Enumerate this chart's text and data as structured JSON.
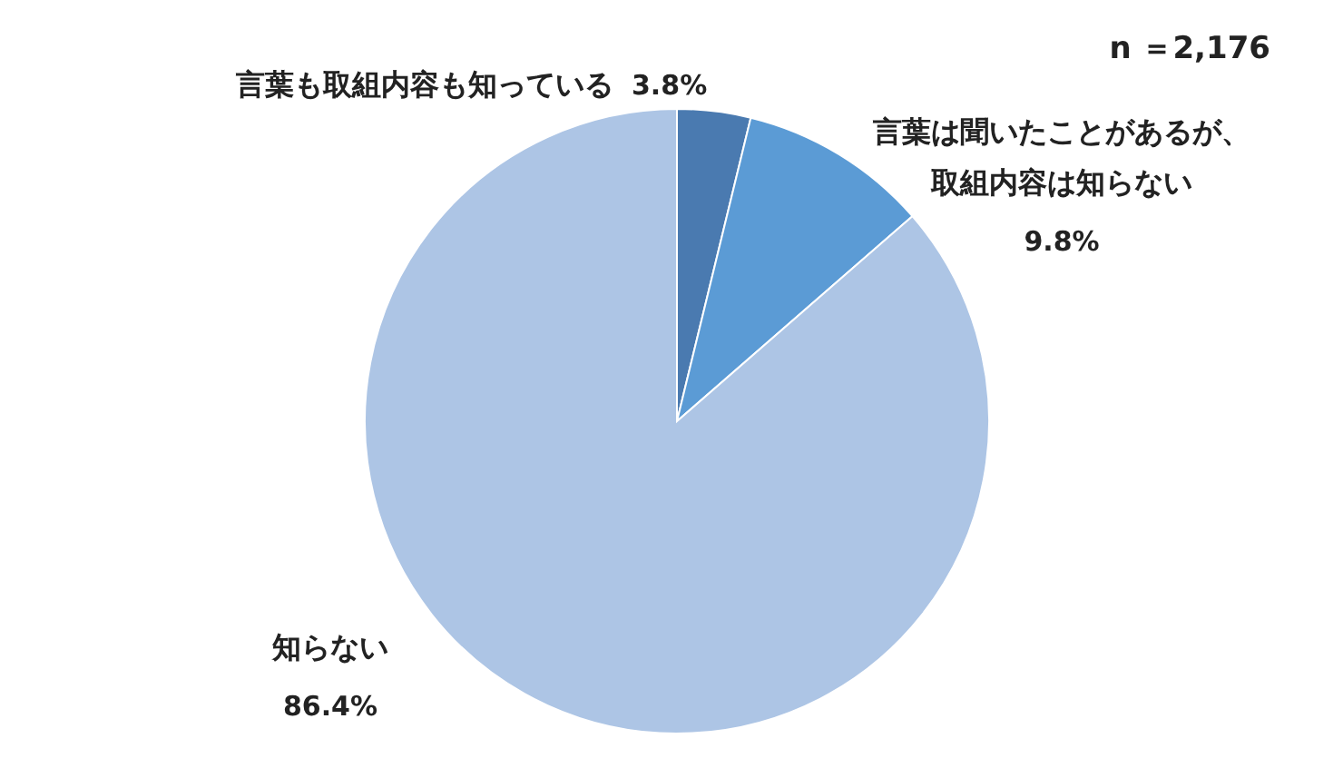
{
  "chart_data": {
    "type": "pie",
    "categories": [
      "言葉も取組内容も知っている",
      "言葉は聞いたことがあるが、取組内容は知らない",
      "知らない"
    ],
    "values": [
      3.8,
      9.8,
      86.4
    ],
    "value_labels": [
      "3.8%",
      "9.8%",
      "86.4%"
    ],
    "colors": [
      "#4a7ab0",
      "#5b9bd5",
      "#adc5e5"
    ],
    "annotations": [
      "n ＝2,176"
    ]
  }
}
